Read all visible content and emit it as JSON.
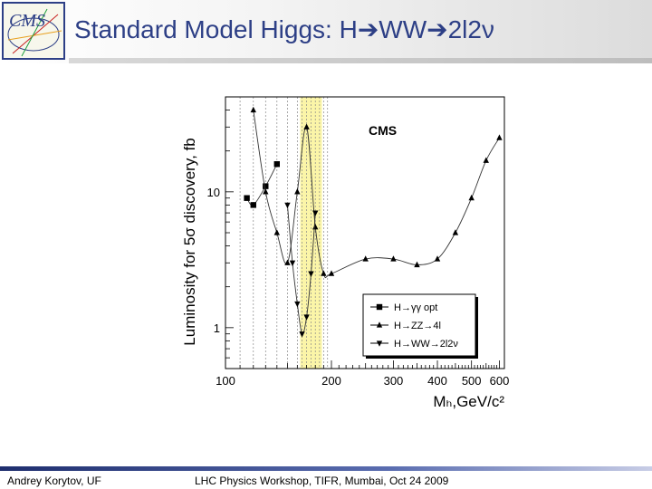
{
  "slide": {
    "title": "Standard Model Higgs: H➔WW➔2l2ν",
    "logo": "CMS",
    "footer_left": "Andrey Korytov, UF",
    "footer_center": "LHC Physics Workshop, TIFR, Mumbai, Oct 24 2009"
  },
  "chart_data": {
    "type": "line",
    "annotation": "CMS",
    "xlabel": "Mₕ,GeV/c²",
    "ylabel": "Luminosity for 5σ discovery, fb",
    "x_scale": "log",
    "y_scale": "log",
    "xlim": [
      100,
      620
    ],
    "ylim": [
      0.5,
      50
    ],
    "x_ticks": [
      100,
      200,
      300,
      400,
      500,
      600
    ],
    "y_ticks": [
      1,
      10
    ],
    "highlight_band": [
      163,
      188
    ],
    "grid_lines_x": [
      110,
      120,
      130,
      140,
      150,
      160,
      165,
      170,
      175,
      180,
      185,
      190,
      195
    ],
    "legend_position": "bottom-right",
    "series": [
      {
        "name": "H→γγ opt",
        "marker": "square",
        "x": [
          115,
          120,
          130,
          140
        ],
        "y": [
          9,
          8,
          11,
          16
        ]
      },
      {
        "name": "H→ZZ→4l",
        "marker": "triangle-up",
        "x": [
          120,
          130,
          140,
          150,
          160,
          170,
          180,
          190,
          200,
          250,
          300,
          350,
          400,
          450,
          500,
          550,
          600
        ],
        "y": [
          40,
          10,
          5,
          3,
          10,
          30,
          5.5,
          2.5,
          2.5,
          3.2,
          3.2,
          2.9,
          3.2,
          5,
          9,
          17,
          25
        ]
      },
      {
        "name": "H→WW→2l2ν",
        "marker": "triangle-down",
        "x": [
          150,
          155,
          160,
          165,
          170,
          175,
          180
        ],
        "y": [
          8,
          3,
          1.5,
          0.9,
          1.2,
          2.5,
          7
        ]
      }
    ]
  }
}
